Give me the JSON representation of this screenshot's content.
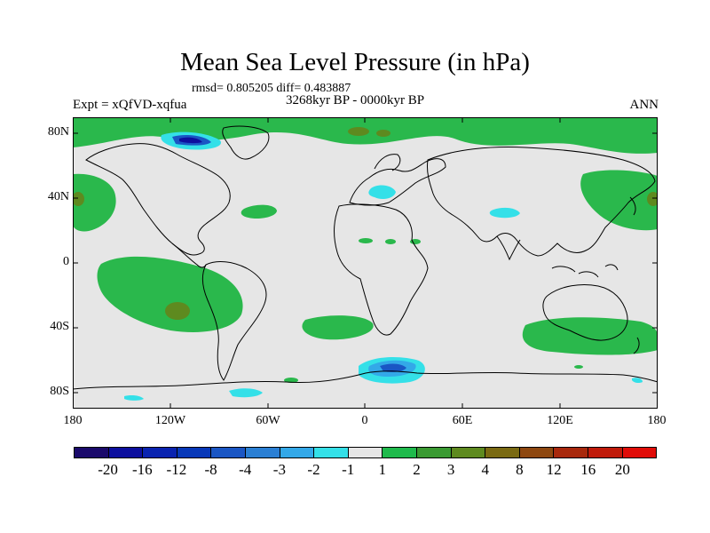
{
  "title": "Mean Sea Level Pressure (in hPa)",
  "stats": "rmsd= 0.805205 diff= 0.483887",
  "experiment": "Expt = xQfVD-xqfua",
  "period": "3268kyr BP - 0000kyr BP",
  "season": "ANN",
  "axes": {
    "y_ticks": [
      "80N",
      "40N",
      "0",
      "40S",
      "80S"
    ],
    "x_ticks": [
      "180",
      "120W",
      "60W",
      "0",
      "60E",
      "120E",
      "180"
    ]
  },
  "colorbar": {
    "labels": [
      "-20",
      "-16",
      "-12",
      "-8",
      "-4",
      "-3",
      "-2",
      "-1",
      "1",
      "2",
      "3",
      "4",
      "8",
      "12",
      "16",
      "20"
    ],
    "colors": [
      "#1a0a6b",
      "#0d0f9e",
      "#0a23b0",
      "#0838b8",
      "#1a56c4",
      "#2a7fd4",
      "#33a8e8",
      "#34e0e8",
      "#e6e6e6",
      "#1fba4c",
      "#3a9a32",
      "#5e8a1f",
      "#7a6a12",
      "#8e4810",
      "#a8280c",
      "#c01a0a",
      "#e00c08"
    ],
    "positive_light": "#2ab84c",
    "land_background": "#e6e6e6",
    "coast": "#000000"
  }
}
